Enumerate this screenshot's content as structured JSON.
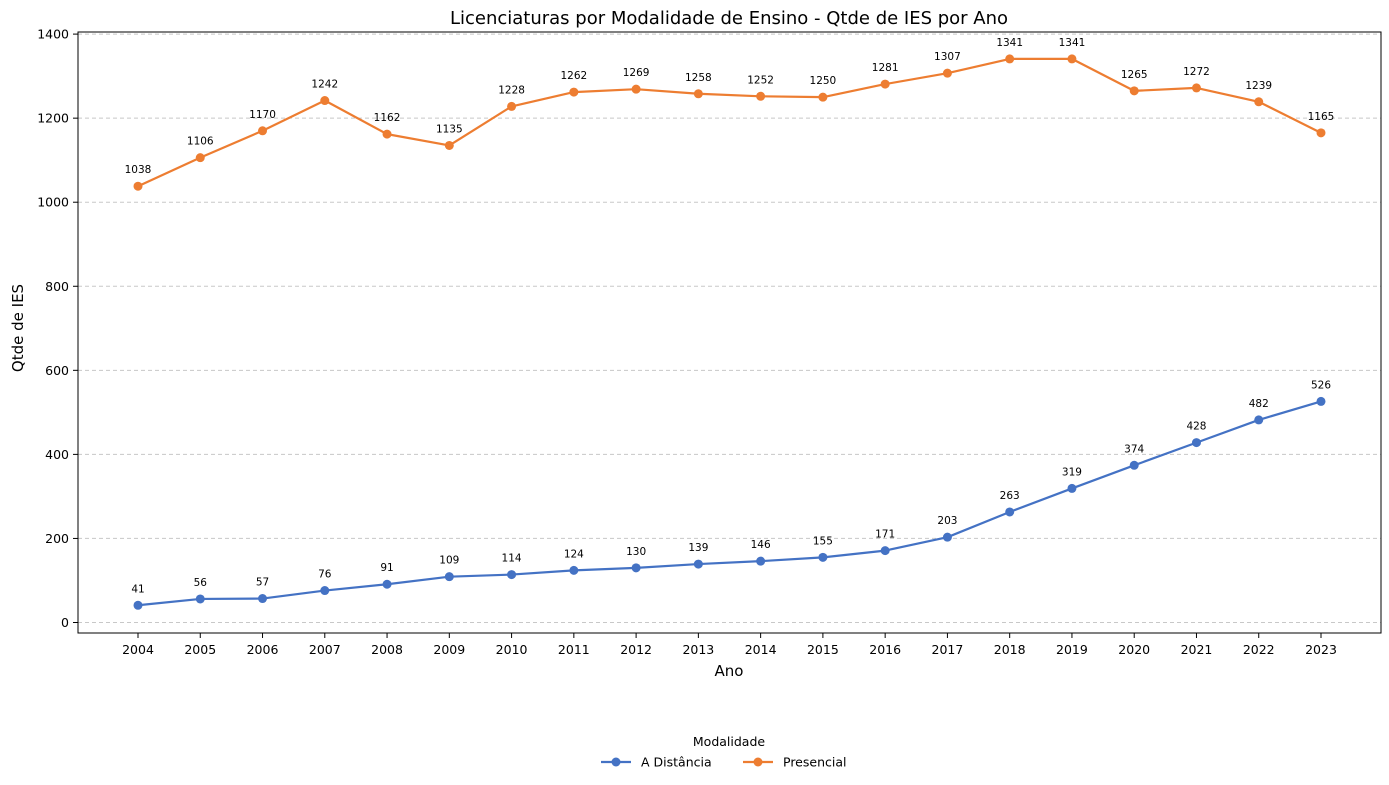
{
  "chart_data": {
    "type": "line",
    "title": "Licenciaturas por Modalidade de Ensino - Qtde de IES por Ano",
    "xlabel": "Ano",
    "ylabel": "Qtde de IES",
    "categories": [
      "2004",
      "2005",
      "2006",
      "2007",
      "2008",
      "2009",
      "2010",
      "2011",
      "2012",
      "2013",
      "2014",
      "2015",
      "2016",
      "2017",
      "2018",
      "2019",
      "2020",
      "2021",
      "2022",
      "2023"
    ],
    "ylim": [
      -25,
      1405
    ],
    "yticks": [
      0,
      200,
      400,
      600,
      800,
      1000,
      1200,
      1400
    ],
    "grid": "horizontal dashed",
    "legend": {
      "title": "Modalidade",
      "placement": "bottom-center"
    },
    "series": [
      {
        "name": "A Distância",
        "color": "#4472c4",
        "values": [
          41,
          56,
          57,
          76,
          91,
          109,
          114,
          124,
          130,
          139,
          146,
          155,
          171,
          203,
          263,
          319,
          374,
          428,
          482,
          526
        ]
      },
      {
        "name": "Presencial",
        "color": "#ed7d31",
        "values": [
          1038,
          1106,
          1170,
          1242,
          1162,
          1135,
          1228,
          1262,
          1269,
          1258,
          1252,
          1250,
          1281,
          1307,
          1341,
          1341,
          1265,
          1272,
          1239,
          1165
        ]
      }
    ]
  }
}
